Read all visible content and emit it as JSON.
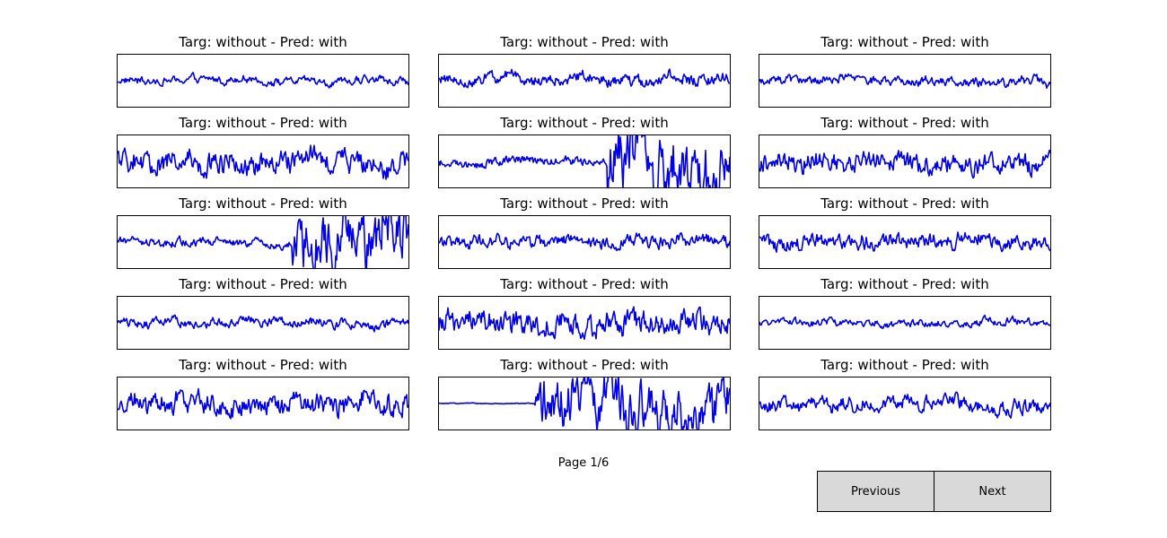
{
  "page": {
    "indicator": "Page 1/6",
    "previous_label": "Previous",
    "next_label": "Next"
  },
  "colors": {
    "signal": "#0000ee",
    "frame": "#000000",
    "button_bg": "#d9d9d9"
  },
  "panels": [
    {
      "title": "Targ: without - Pred: with",
      "amp": 0.18,
      "burst": null
    },
    {
      "title": "Targ: without - Pred: with",
      "amp": 0.28,
      "burst": null
    },
    {
      "title": "Targ: without - Pred: with",
      "amp": 0.22,
      "burst": null
    },
    {
      "title": "Targ: without - Pred: with",
      "amp": 0.55,
      "burst": null
    },
    {
      "title": "Targ: without - Pred: with",
      "amp": 0.2,
      "burst": {
        "start": 0.58,
        "amp": 1.6
      }
    },
    {
      "title": "Targ: without - Pred: with",
      "amp": 0.5,
      "burst": null
    },
    {
      "title": "Targ: without - Pred: with",
      "amp": 0.2,
      "burst": {
        "start": 0.6,
        "amp": 1.3
      }
    },
    {
      "title": "Targ: without - Pred: with",
      "amp": 0.3,
      "burst": null
    },
    {
      "title": "Targ: without - Pred: with",
      "amp": 0.35,
      "burst": null
    },
    {
      "title": "Targ: without - Pred: with",
      "amp": 0.22,
      "burst": null
    },
    {
      "title": "Targ: without - Pred: with",
      "amp": 0.55,
      "burst": null
    },
    {
      "title": "Targ: without - Pred: with",
      "amp": 0.18,
      "burst": null
    },
    {
      "title": "Targ: without - Pred: with",
      "amp": 0.55,
      "burst": null
    },
    {
      "title": "Targ: without - Pred: with",
      "amp": 0.02,
      "burst": {
        "start": 0.33,
        "amp": 1.2
      }
    },
    {
      "title": "Targ: without - Pred: with",
      "amp": 0.35,
      "burst": null
    }
  ]
}
